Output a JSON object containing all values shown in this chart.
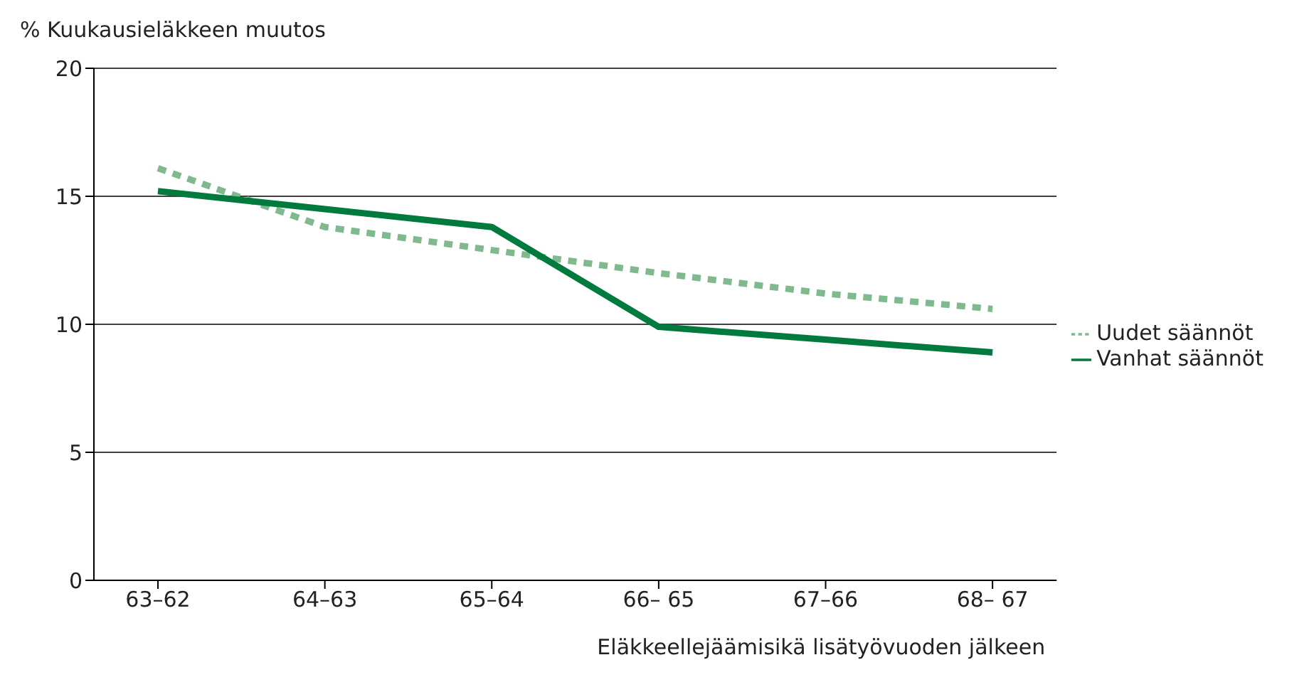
{
  "chart_data": {
    "type": "line",
    "ylabel": "%  Kuukausieläkkeen muutos",
    "xlabel": "Eläkkeellejäämisikä lisätyövuoden jälkeen",
    "categories": [
      "63–62",
      "64–63",
      "65–64",
      "66– 65",
      "67–66",
      "68– 67"
    ],
    "series": [
      {
        "name": "Uudet säännöt",
        "color": "#80b98e",
        "line_style": "dotted",
        "values": [
          16.1,
          13.8,
          12.9,
          12.0,
          11.2,
          10.6
        ]
      },
      {
        "name": "Vanhat säännöt",
        "color": "#007a3d",
        "line_style": "solid",
        "values": [
          15.2,
          14.5,
          13.8,
          9.9,
          9.4,
          8.9
        ]
      }
    ],
    "ylim": [
      0,
      20
    ],
    "yticks": [
      0,
      5,
      10,
      15,
      20
    ],
    "grid": "y",
    "legend": "right",
    "marker": "none"
  }
}
